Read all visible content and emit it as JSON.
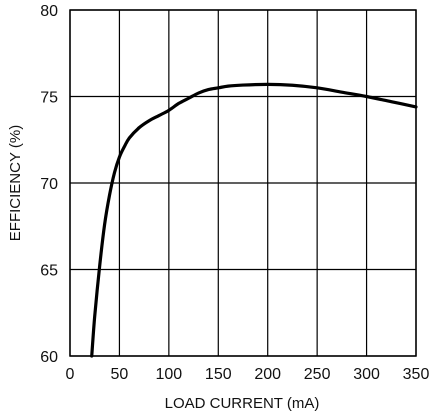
{
  "chart_data": {
    "type": "line",
    "title": "",
    "xlabel": "LOAD CURRENT (mA)",
    "ylabel": "EFFICIENCY (%)",
    "xlim": [
      0,
      350
    ],
    "ylim": [
      60,
      80
    ],
    "xticks": [
      0,
      50,
      100,
      150,
      200,
      250,
      300,
      350
    ],
    "yticks": [
      60,
      65,
      70,
      75,
      80
    ],
    "grid": true,
    "line_color": "#000000",
    "series": [
      {
        "x": [
          22,
          25,
          30,
          35,
          40,
          45,
          50,
          55,
          60,
          70,
          80,
          90,
          100,
          110,
          120,
          130,
          140,
          150,
          160,
          175,
          200,
          225,
          250,
          275,
          300,
          325,
          350
        ],
        "y": [
          60.0,
          62.3,
          65.2,
          67.6,
          69.3,
          70.6,
          71.5,
          72.1,
          72.6,
          73.2,
          73.6,
          73.9,
          74.2,
          74.6,
          74.9,
          75.2,
          75.4,
          75.5,
          75.6,
          75.66,
          75.7,
          75.65,
          75.5,
          75.25,
          75.0,
          74.7,
          74.4
        ]
      }
    ]
  }
}
